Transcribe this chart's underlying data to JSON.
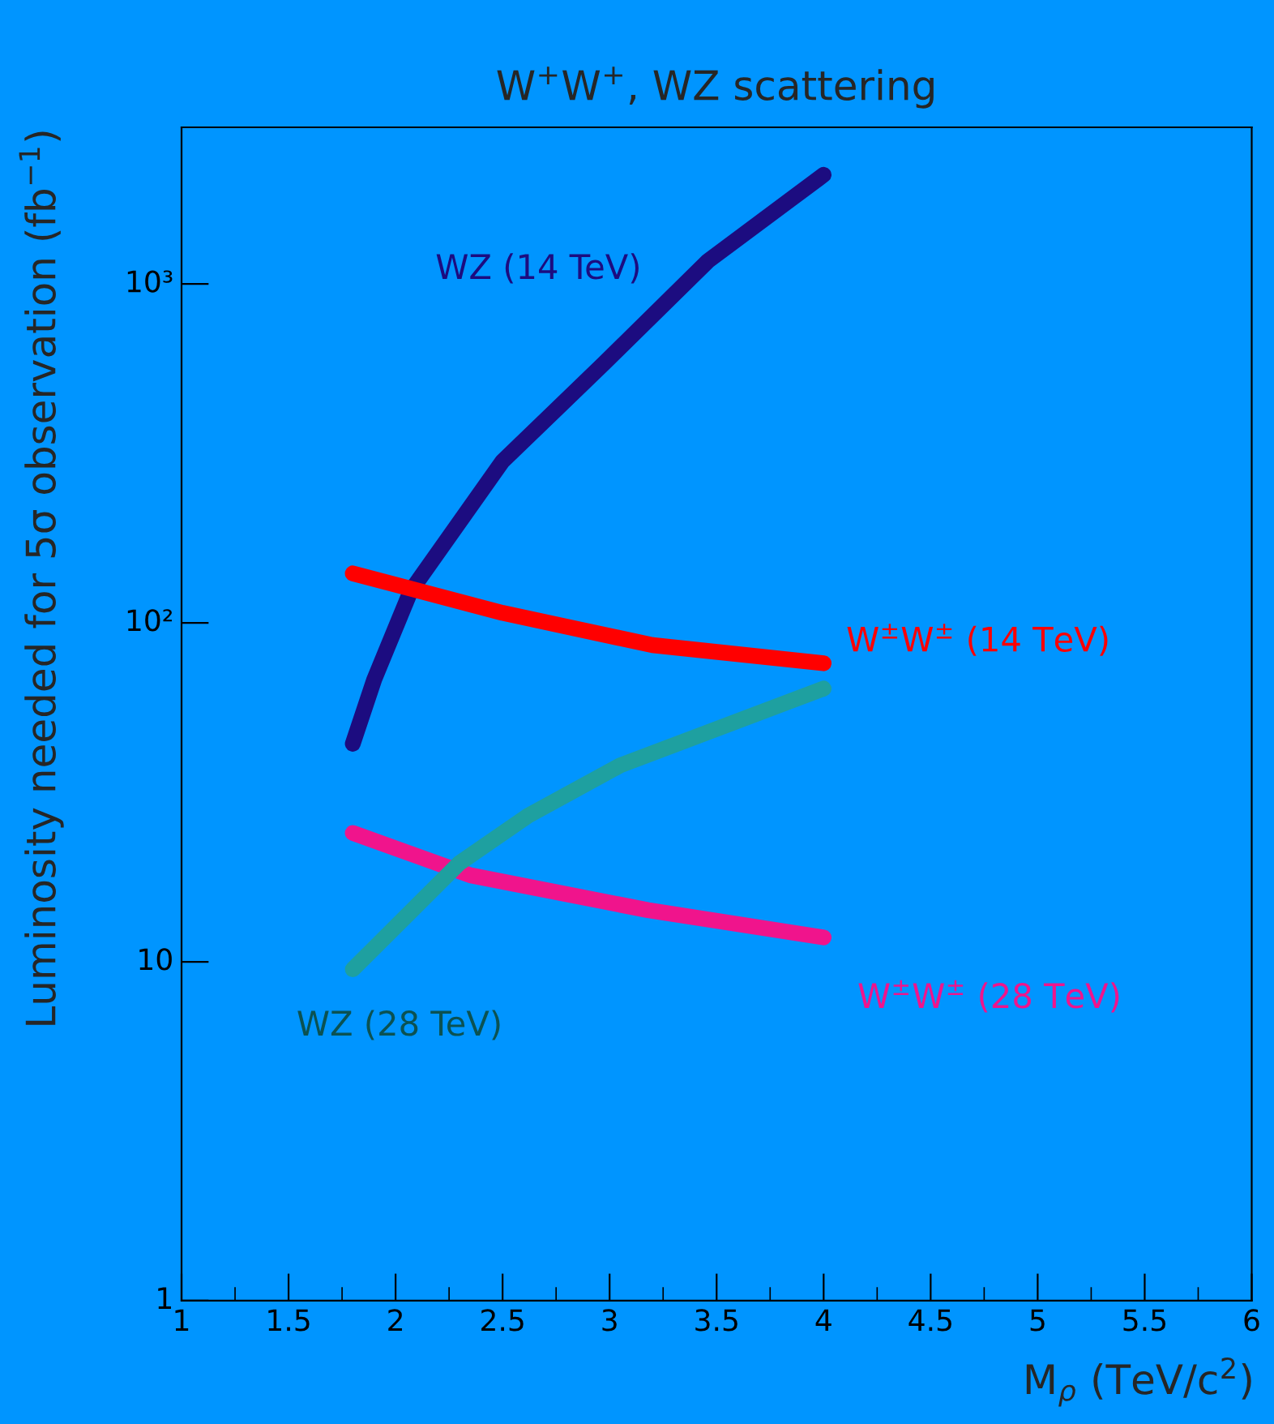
{
  "chart_data": {
    "type": "line",
    "title": "W$^{+}$W$^{+}$, WZ scattering",
    "xlabel": "M$_{ρ}$ (TeV/c$^{2}$)",
    "ylabel": "Luminosity needed for 5σ observation (fb$^{−1}$)",
    "log": "y",
    "grid": false,
    "legend": false,
    "marker": "none",
    "line_style": "solid",
    "xlim": [
      1,
      6
    ],
    "xticks": [
      1,
      1.5,
      2,
      2.5,
      3,
      3.5,
      4,
      4.5,
      5,
      5.5,
      6
    ],
    "ylim": [
      1,
      2900
    ],
    "yticks": [
      1,
      10,
      {
        "value": 100,
        "label": "10²"
      },
      {
        "value": 1000,
        "label": "10³"
      }
    ],
    "series": [
      {
        "name": "WZ (14 TeV)",
        "color": "#1c0c80",
        "x": [
          1.8,
          1.9,
          2.07,
          2.5,
          2.97,
          3.46,
          4
        ],
        "values": [
          44,
          68,
          124,
          300,
          580,
          1170,
          2100
        ]
      },
      {
        "name": "W$^{±}$W$^{±}$ (14 TeV)",
        "color": "#ff0000",
        "x": [
          1.8,
          2.5,
          3.2,
          4
        ],
        "values": [
          140,
          107,
          86,
          76
        ]
      },
      {
        "name": "W$^{±}$W$^{±}$ (28 TeV)",
        "color": "#f0148c",
        "x": [
          1.8,
          2.35,
          3.18,
          4
        ],
        "values": [
          24,
          18,
          14.2,
          11.8
        ]
      },
      {
        "name": "WZ (28 TeV)",
        "color": "#1ea0a0",
        "x": [
          1.8,
          2.3,
          2.62,
          3.05,
          4
        ],
        "values": [
          9.5,
          19.6,
          27,
          38,
          64
        ]
      }
    ]
  }
}
